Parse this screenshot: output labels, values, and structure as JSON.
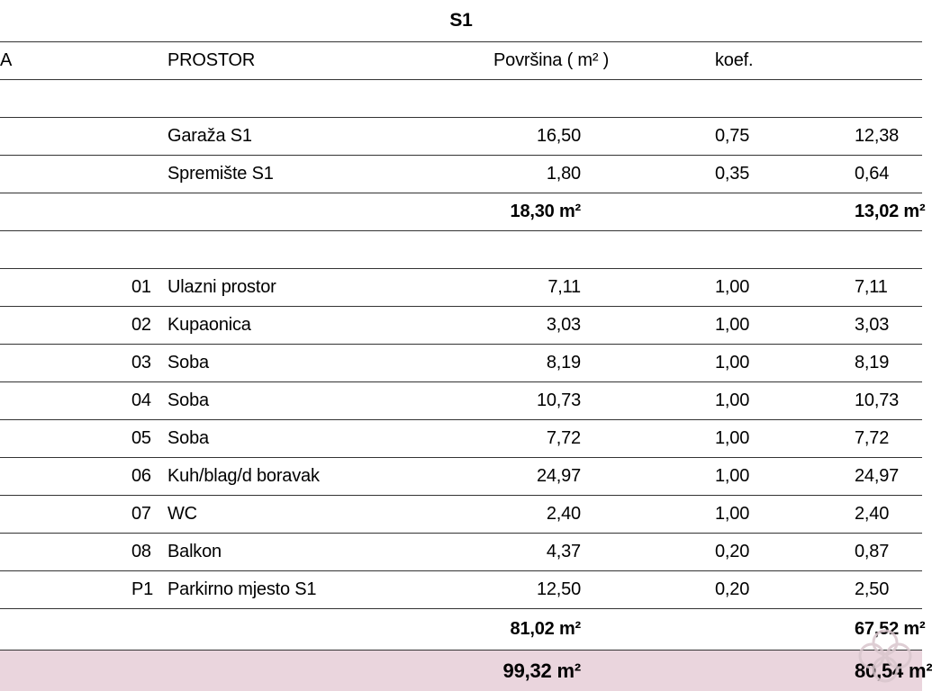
{
  "title": "S1",
  "header": {
    "label_a": "A",
    "prostor": "PROSTOR",
    "povrsina": "Površina ( m² )",
    "koef": "koef."
  },
  "group1": {
    "rows": [
      {
        "name": "Garaža S1",
        "area": "16,50",
        "koef": "0,75",
        "calc": "12,38"
      },
      {
        "name": "Spremište S1",
        "area": "1,80",
        "koef": "0,35",
        "calc": "0,64"
      }
    ],
    "subtotal": {
      "area": "18,30 m²",
      "calc": "13,02 m²"
    }
  },
  "group2": {
    "rows": [
      {
        "num": "01",
        "name": "Ulazni prostor",
        "area": "7,11",
        "koef": "1,00",
        "calc": "7,11"
      },
      {
        "num": "02",
        "name": "Kupaonica",
        "area": "3,03",
        "koef": "1,00",
        "calc": "3,03"
      },
      {
        "num": "03",
        "name": "Soba",
        "area": "8,19",
        "koef": "1,00",
        "calc": "8,19"
      },
      {
        "num": "04",
        "name": "Soba",
        "area": "10,73",
        "koef": "1,00",
        "calc": "10,73"
      },
      {
        "num": "05",
        "name": "Soba",
        "area": "7,72",
        "koef": "1,00",
        "calc": "7,72"
      },
      {
        "num": "06",
        "name": "Kuh/blag/d boravak",
        "area": "24,97",
        "koef": "1,00",
        "calc": "24,97"
      },
      {
        "num": "07",
        "name": "WC",
        "area": "2,40",
        "koef": "1,00",
        "calc": "2,40"
      },
      {
        "num": "08",
        "name": "Balkon",
        "area": "4,37",
        "koef": "0,20",
        "calc": "0,87"
      },
      {
        "num": "P1",
        "name": "Parkirno mjesto S1",
        "area": "12,50",
        "koef": "0,20",
        "calc": "2,50"
      }
    ],
    "subtotal": {
      "area": "81,02 m²",
      "calc": "67,52 m²"
    }
  },
  "total": {
    "area": "99,32 m²",
    "calc": "80,54 m²"
  },
  "colors": {
    "total_row_bg": "#ead5dd",
    "grid_line": "#333333",
    "watermark": "#d9c6cd"
  },
  "icons": {
    "watermark": "flower-logo-icon"
  }
}
